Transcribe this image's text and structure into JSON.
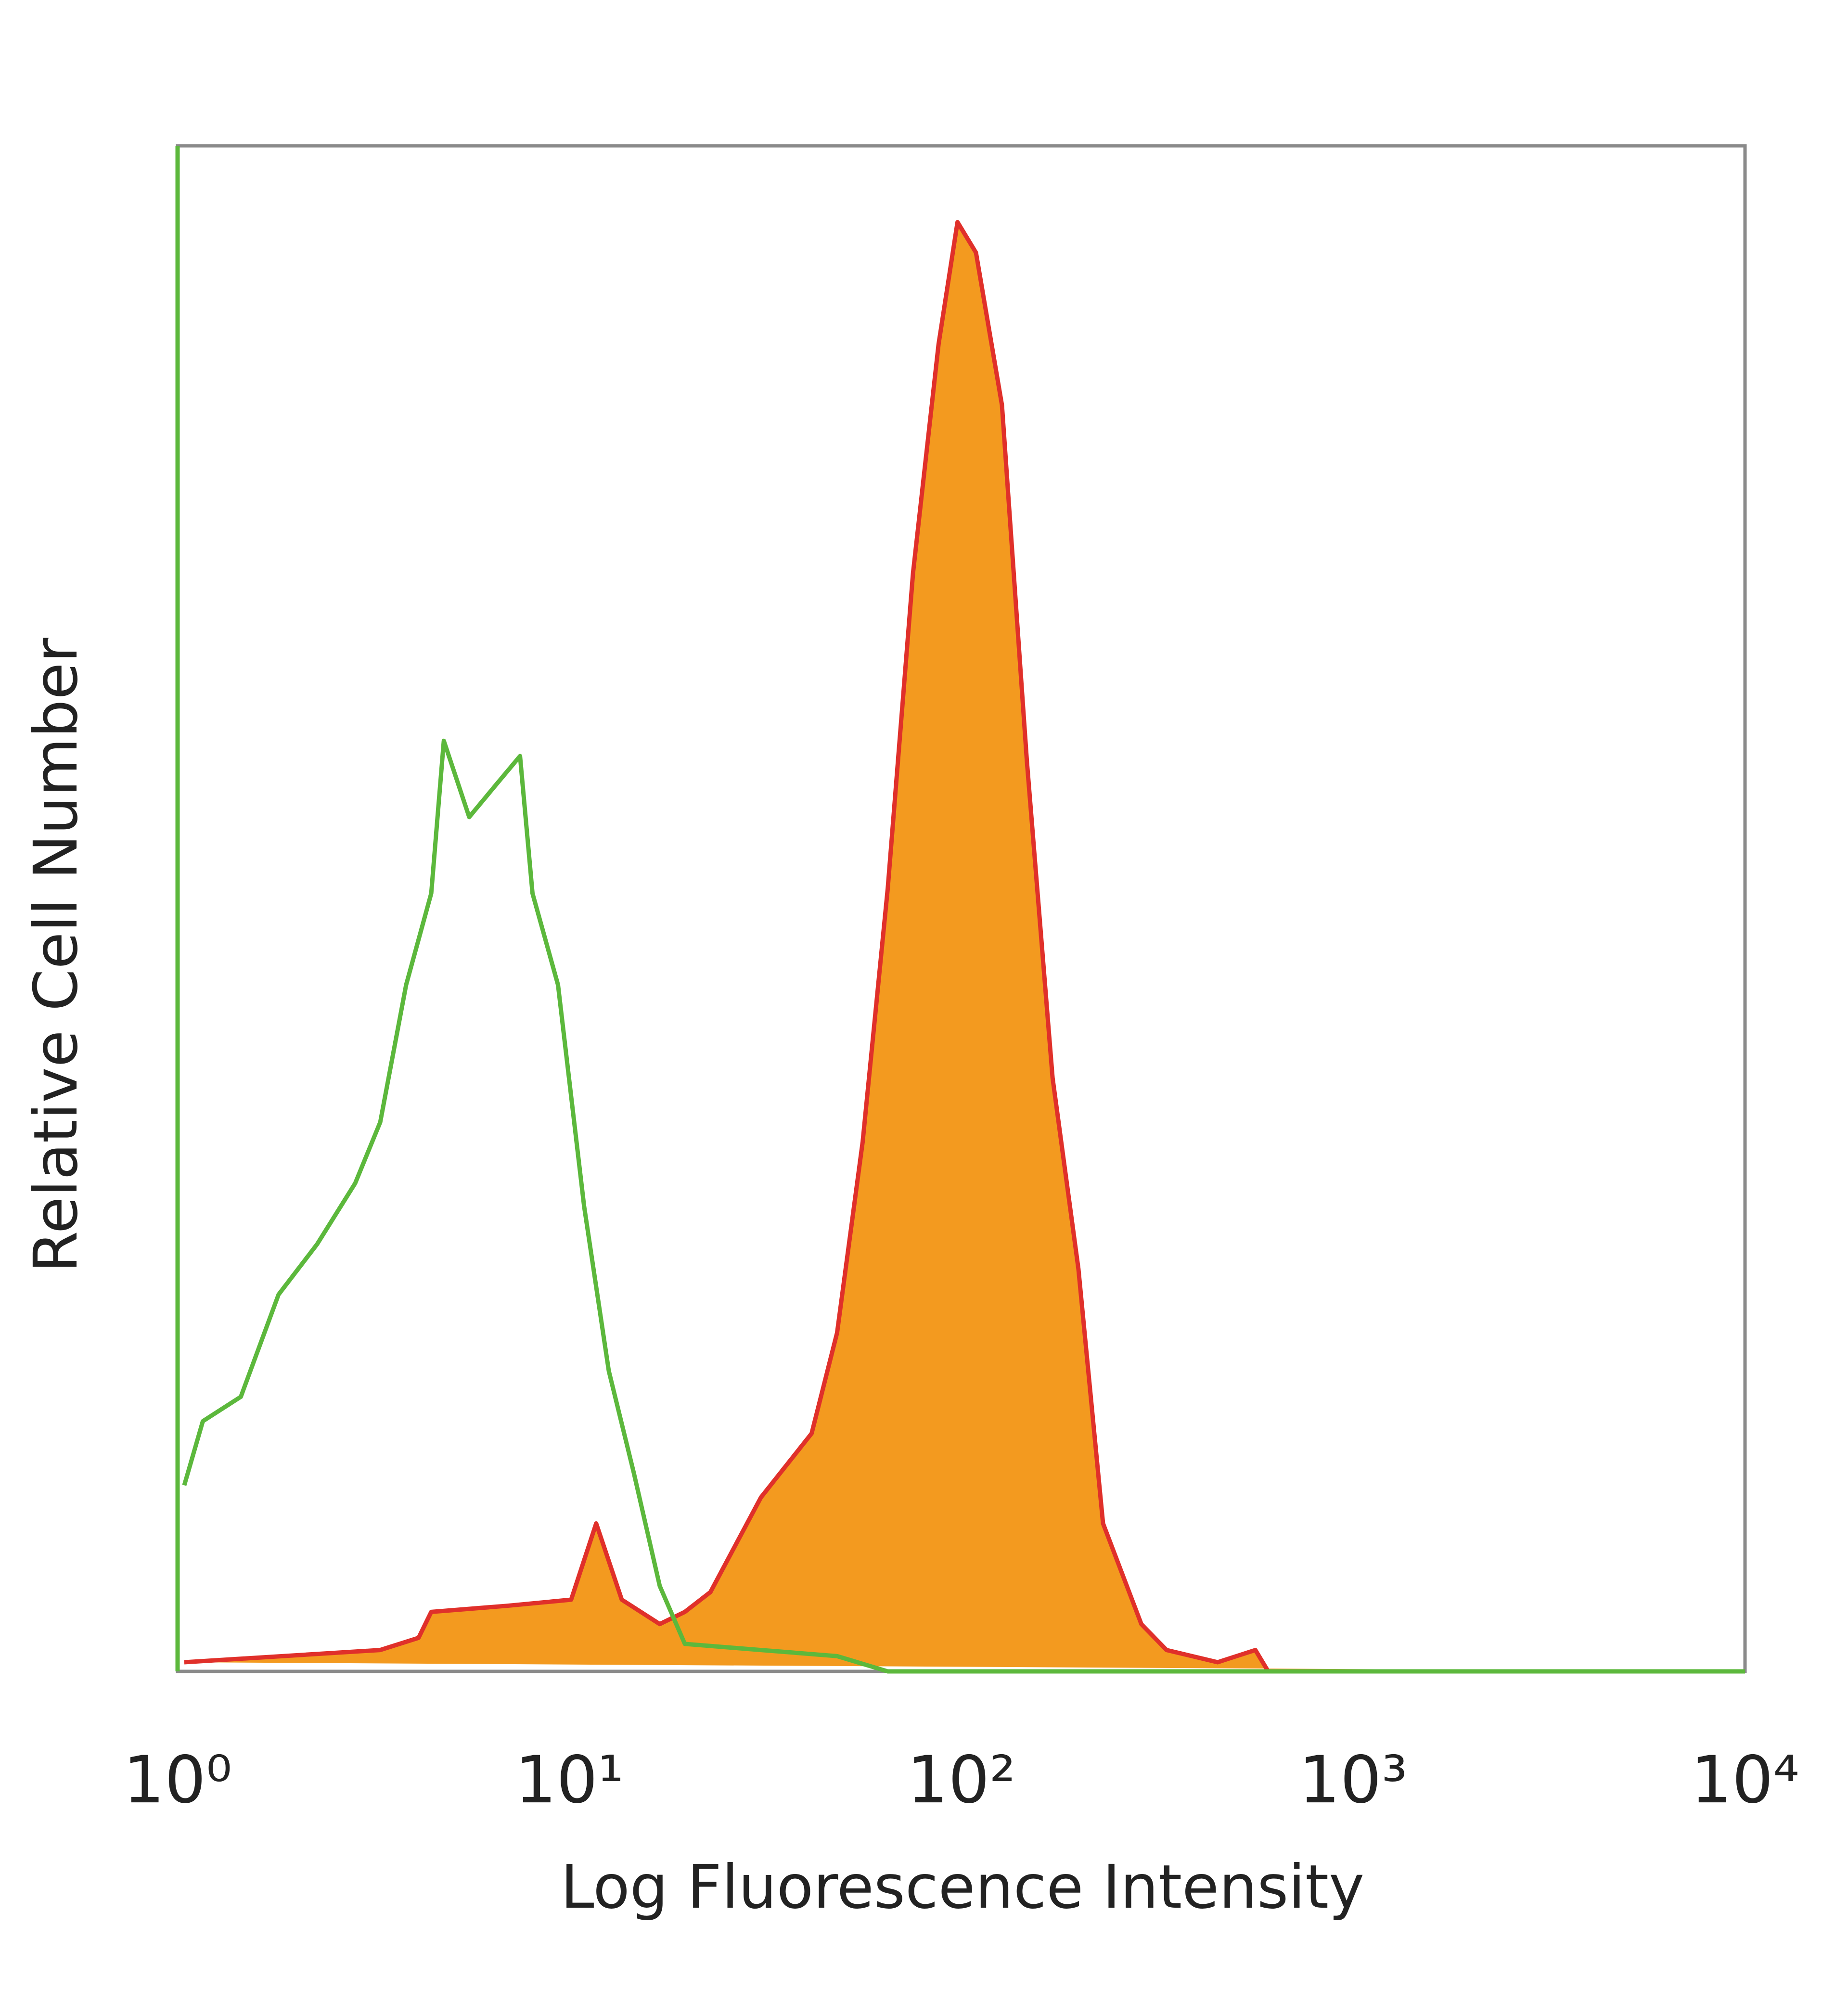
{
  "chart_data": {
    "type": "histogram-overlay",
    "x_label": "Log Fluorescence Intensity",
    "y_label": "Relative Cell Number",
    "xscale": "log",
    "xlim": [
      1,
      10000
    ],
    "ylim": [
      0,
      100
    ],
    "xticks": [
      {
        "value": 1,
        "label": "10⁰"
      },
      {
        "value": 10,
        "label": "10¹"
      },
      {
        "value": 100,
        "label": "10²"
      },
      {
        "value": 1000,
        "label": "10³"
      },
      {
        "value": 10000,
        "label": "10⁴"
      }
    ],
    "grid": false,
    "frame_color": "#8a8a8a",
    "series": [
      {
        "color": "#5cb83c",
        "fill": null,
        "x": [
          1.04,
          1.16,
          1.45,
          1.81,
          2.27,
          2.84,
          3.29,
          3.83,
          4.44,
          4.78,
          5.55,
          6.44,
          7.48,
          8.05,
          9.35,
          10.9,
          12.6,
          14.6,
          17.0,
          19.7,
          30.8,
          48.2,
          64.9,
          10000
        ],
        "values": [
          12.2,
          16.4,
          18,
          24.7,
          28,
          32,
          36,
          45,
          51,
          61,
          56,
          58,
          60,
          51,
          45,
          30.5,
          19.7,
          13,
          5.6,
          1.8,
          1.4,
          1,
          0,
          0
        ]
      },
      {
        "color": "#e0302a",
        "fill": "#f39a1f",
        "x": [
          1.04,
          3.29,
          4.12,
          4.44,
          6.94,
          10.1,
          11.7,
          13.6,
          17.0,
          19.7,
          22.9,
          30.8,
          41.5,
          48.2,
          56.0,
          64.9,
          75.3,
          87.5,
          97.8,
          109,
          127,
          147,
          171,
          199,
          230,
          288,
          334,
          451,
          563,
          607,
          10000
        ],
        "values": [
          0.6,
          1.4,
          2.2,
          3.9,
          4.3,
          4.7,
          9.7,
          4.7,
          3.1,
          3.9,
          5.2,
          11.4,
          15.6,
          22.2,
          34.7,
          51.3,
          72,
          87,
          95,
          93,
          83,
          59.7,
          38.9,
          26.4,
          9.7,
          3.1,
          1.4,
          0.6,
          1.4,
          0,
          0
        ]
      }
    ]
  }
}
